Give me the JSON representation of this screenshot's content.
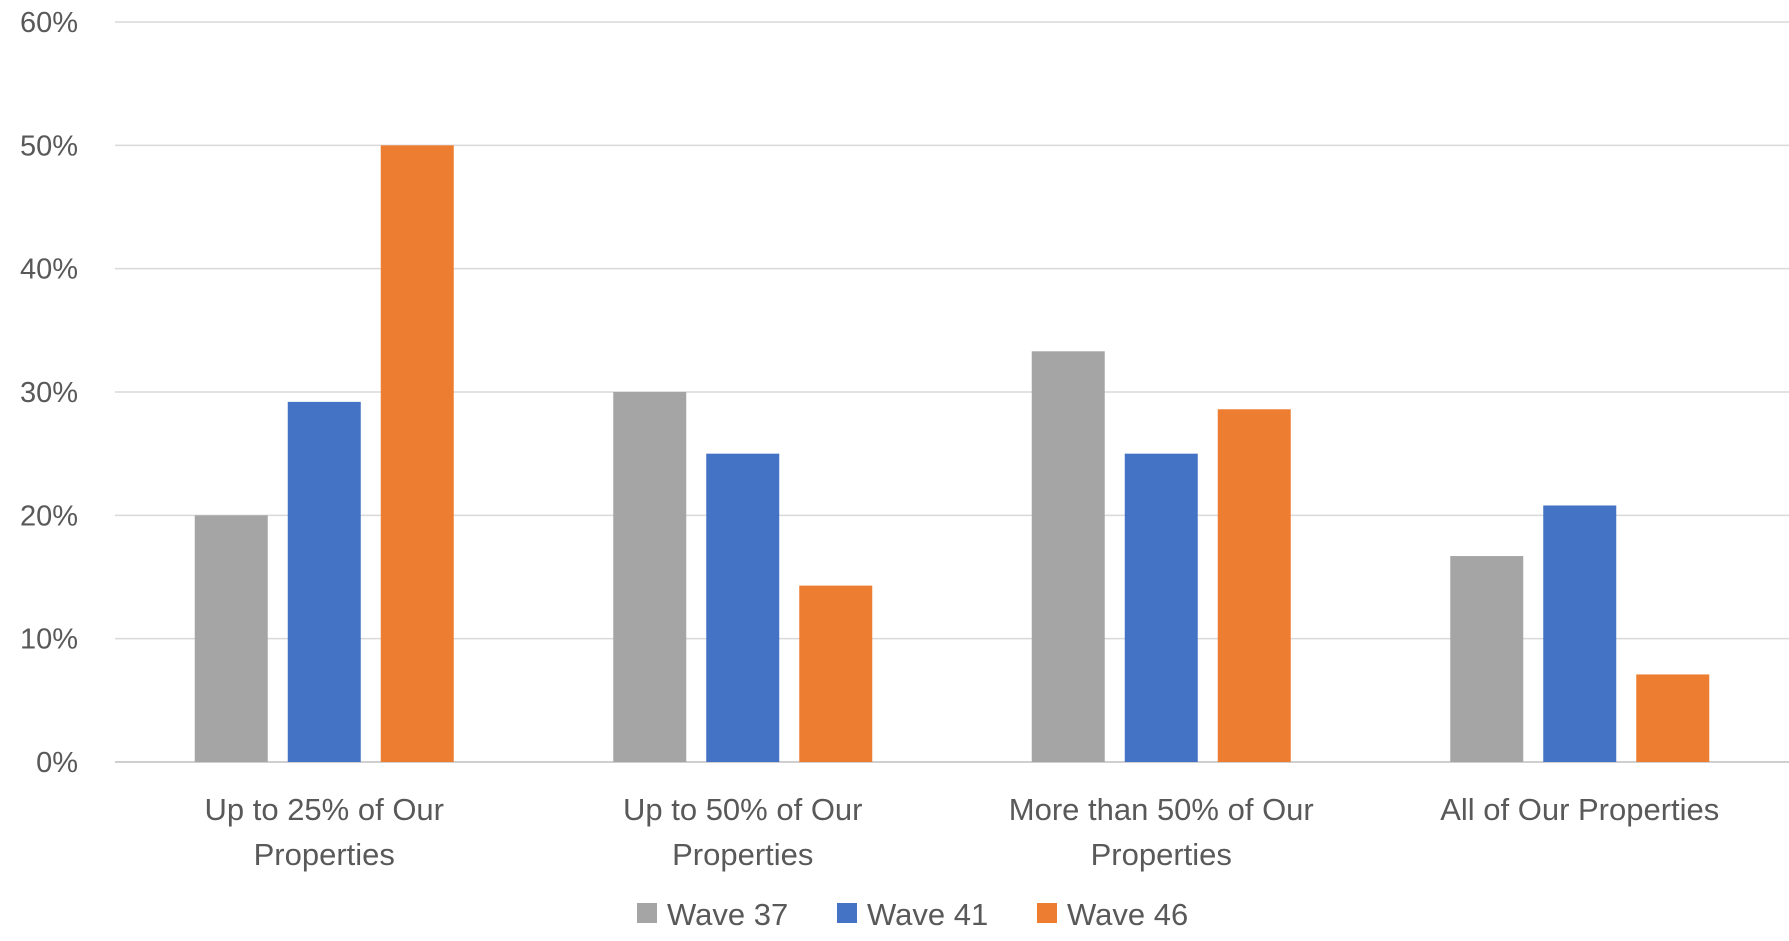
{
  "chart_data": {
    "type": "bar",
    "categories": [
      [
        "Up to 25% of Our",
        "Properties"
      ],
      [
        "Up to 50% of Our",
        "Properties"
      ],
      [
        "More than 50% of Our",
        "Properties"
      ],
      [
        "All of Our Properties"
      ]
    ],
    "series": [
      {
        "name": "Wave 37",
        "color": "#a5a5a5",
        "values": [
          20.0,
          30.0,
          33.3,
          16.7
        ]
      },
      {
        "name": "Wave 41",
        "color": "#4472c4",
        "values": [
          29.2,
          25.0,
          25.0,
          20.8
        ]
      },
      {
        "name": "Wave 46",
        "color": "#ed7d31",
        "values": [
          50.0,
          14.3,
          28.6,
          7.1
        ]
      }
    ],
    "y_ticks": [
      "0%",
      "10%",
      "20%",
      "30%",
      "40%",
      "50%",
      "60%"
    ],
    "ylim": [
      0,
      60
    ],
    "y_unit": "%",
    "grid": true,
    "legend_position": "bottom"
  }
}
